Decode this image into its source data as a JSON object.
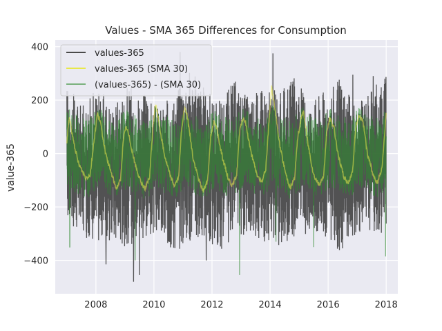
{
  "chart_data": {
    "type": "line",
    "title": "Values - SMA 365 Differences for Consumption",
    "xlabel": "",
    "ylabel": "value-365",
    "xlim": [
      2006.6,
      2018.4
    ],
    "ylim": [
      -525,
      425
    ],
    "x_ticks": [
      2008,
      2010,
      2012,
      2014,
      2016,
      2018
    ],
    "x_tick_labels": [
      "2008",
      "2010",
      "2012",
      "2014",
      "2016",
      "2018"
    ],
    "y_ticks": [
      -400,
      -200,
      0,
      200,
      400
    ],
    "y_tick_labels": [
      "−400",
      "−200",
      "0",
      "200",
      "400"
    ],
    "grid": true,
    "legend_position": "top-left",
    "background_color": "#eaeaf2",
    "x_start": 2007.0,
    "x_end": 2018.0,
    "series": [
      {
        "name": "values-365",
        "color": "#4a4a4a",
        "kind": "daily",
        "envelope_upper": [
          260,
          180,
          250,
          190,
          260,
          230,
          170,
          220,
          330,
          250,
          200,
          280,
          210,
          260,
          230,
          290,
          200,
          250,
          280,
          170,
          260,
          290
        ],
        "envelope_lower": [
          -260,
          -310,
          -330,
          -340,
          -350,
          -320,
          -300,
          -380,
          -330,
          -340,
          -370,
          -320,
          -300,
          -330,
          -360,
          -310,
          -300,
          -320,
          -370,
          -300,
          -290,
          -300
        ],
        "spikes": [
          [
            2007.05,
            -210
          ],
          [
            2008.35,
            -415
          ],
          [
            2009.3,
            -480
          ],
          [
            2009.5,
            -455
          ],
          [
            2010.9,
            380
          ],
          [
            2011.8,
            -400
          ],
          [
            2014.1,
            375
          ],
          [
            2016.85,
            295
          ],
          [
            2017.55,
            290
          ],
          [
            2017.95,
            280
          ]
        ]
      },
      {
        "name": "values-365 (SMA 30)",
        "color": "#e8e84a",
        "kind": "smooth",
        "points": [
          [
            2007.0,
            40
          ],
          [
            2007.08,
            140
          ],
          [
            2007.2,
            60
          ],
          [
            2007.38,
            -30
          ],
          [
            2007.5,
            -60
          ],
          [
            2007.65,
            -90
          ],
          [
            2007.8,
            -80
          ],
          [
            2007.95,
            60
          ],
          [
            2008.05,
            150
          ],
          [
            2008.15,
            120
          ],
          [
            2008.35,
            -10
          ],
          [
            2008.55,
            -80
          ],
          [
            2008.7,
            -130
          ],
          [
            2008.85,
            -100
          ],
          [
            2008.95,
            60
          ],
          [
            2009.05,
            100
          ],
          [
            2009.15,
            60
          ],
          [
            2009.35,
            -40
          ],
          [
            2009.55,
            -110
          ],
          [
            2009.7,
            -130
          ],
          [
            2009.85,
            -90
          ],
          [
            2009.95,
            80
          ],
          [
            2010.05,
            190
          ],
          [
            2010.15,
            130
          ],
          [
            2010.35,
            0
          ],
          [
            2010.55,
            -80
          ],
          [
            2010.7,
            -120
          ],
          [
            2010.85,
            -90
          ],
          [
            2010.95,
            90
          ],
          [
            2011.05,
            170
          ],
          [
            2011.15,
            140
          ],
          [
            2011.35,
            -20
          ],
          [
            2011.55,
            -100
          ],
          [
            2011.7,
            -140
          ],
          [
            2011.85,
            -100
          ],
          [
            2011.95,
            60
          ],
          [
            2012.05,
            120
          ],
          [
            2012.15,
            100
          ],
          [
            2012.35,
            -10
          ],
          [
            2012.55,
            -90
          ],
          [
            2012.7,
            -120
          ],
          [
            2012.85,
            -80
          ],
          [
            2012.95,
            80
          ],
          [
            2013.05,
            130
          ],
          [
            2013.15,
            120
          ],
          [
            2013.35,
            0
          ],
          [
            2013.55,
            -80
          ],
          [
            2013.7,
            -110
          ],
          [
            2013.85,
            -60
          ],
          [
            2013.95,
            100
          ],
          [
            2014.05,
            250
          ],
          [
            2014.15,
            180
          ],
          [
            2014.35,
            20
          ],
          [
            2014.55,
            -80
          ],
          [
            2014.7,
            -130
          ],
          [
            2014.85,
            -90
          ],
          [
            2014.95,
            60
          ],
          [
            2015.05,
            120
          ],
          [
            2015.15,
            160
          ],
          [
            2015.3,
            40
          ],
          [
            2015.5,
            -80
          ],
          [
            2015.7,
            -120
          ],
          [
            2015.85,
            -80
          ],
          [
            2015.95,
            80
          ],
          [
            2016.05,
            130
          ],
          [
            2016.2,
            100
          ],
          [
            2016.35,
            -10
          ],
          [
            2016.55,
            -90
          ],
          [
            2016.7,
            -110
          ],
          [
            2016.85,
            -60
          ],
          [
            2016.95,
            100
          ],
          [
            2017.05,
            140
          ],
          [
            2017.2,
            120
          ],
          [
            2017.35,
            0
          ],
          [
            2017.55,
            -80
          ],
          [
            2017.7,
            -110
          ],
          [
            2017.85,
            -60
          ],
          [
            2018.0,
            150
          ]
        ]
      },
      {
        "name": "(values-365) - (SMA 30)",
        "color": "#2e8b2e",
        "kind": "residual",
        "amplitude": 150,
        "spikes": [
          [
            2007.1,
            -350
          ],
          [
            2009.35,
            -400
          ],
          [
            2012.95,
            -455
          ],
          [
            2014.2,
            -330
          ],
          [
            2015.5,
            -350
          ],
          [
            2017.98,
            -385
          ]
        ]
      }
    ]
  }
}
